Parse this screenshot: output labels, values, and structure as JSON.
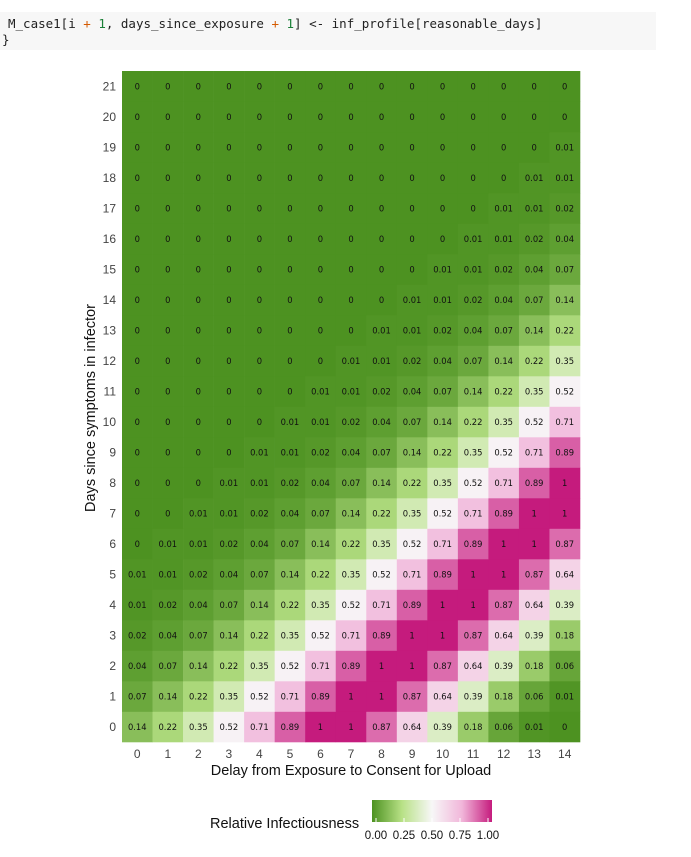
{
  "code": {
    "line1_prefix": "M_case1[i ",
    "line1_op1": "+",
    "line1_mid1": " ",
    "line1_num1": "1",
    "line1_mid2": ", days_since_exposure ",
    "line1_op2": "+",
    "line1_mid3": " ",
    "line1_num2": "1",
    "line1_suffix": "] <- inf_profile[reasonable_days]",
    "line2": "}"
  },
  "chart_data": {
    "type": "heatmap",
    "xlabel": "Delay from Exposure to Consent for Upload",
    "ylabel": "Days since symptoms in infector",
    "x": [
      0,
      1,
      2,
      3,
      4,
      5,
      6,
      7,
      8,
      9,
      10,
      11,
      12,
      13,
      14
    ],
    "y": [
      0,
      1,
      2,
      3,
      4,
      5,
      6,
      7,
      8,
      9,
      10,
      11,
      12,
      13,
      14,
      15,
      16,
      17,
      18,
      19,
      20,
      21
    ],
    "profile": [
      0,
      0.01,
      0.06,
      0.18,
      0.39,
      0.64,
      0.87,
      1,
      1,
      0.89,
      0.71,
      0.52,
      0.35,
      0.22,
      0.14,
      0.07,
      0.04,
      0.02,
      0.01,
      0.01,
      0,
      0,
      0,
      0,
      0,
      0,
      0,
      0,
      0,
      0,
      0,
      0,
      0,
      0,
      0,
      0
    ],
    "profile_note_source": "value[y][x] = profile[y - x + 14]",
    "legend": {
      "title": "Relative Infectiousness",
      "ticks": [
        "0.00",
        "0.25",
        "0.50",
        "0.75",
        "1.00"
      ]
    },
    "colors": {
      "low": "#4d9221",
      "mid": "#f7f7f7",
      "high": "#c51b7d"
    }
  }
}
